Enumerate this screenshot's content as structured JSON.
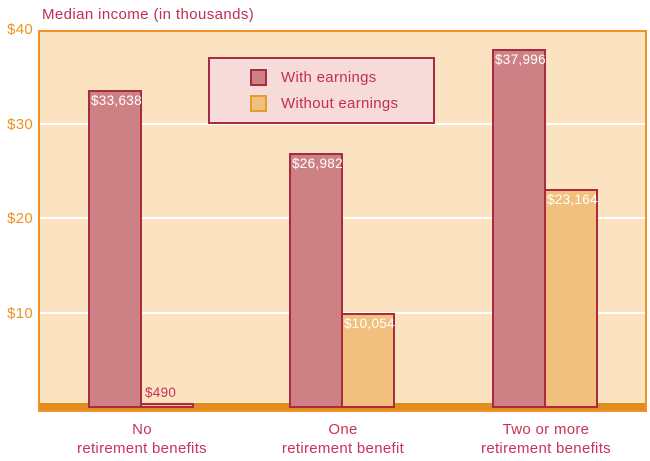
{
  "chart_data": {
    "type": "bar",
    "title": "Median income (in thousands)",
    "categories": [
      "No\nretirement benefits",
      "One\nretirement benefit",
      "Two or more\nretirement benefits"
    ],
    "series": [
      {
        "name": "With earnings",
        "values": [
          33638,
          26982,
          37996
        ],
        "value_labels": [
          "$33,638",
          "$26,982",
          "$37,996"
        ],
        "fill": "#ce8184",
        "border": "#a92b40"
      },
      {
        "name": "Without earnings",
        "values": [
          490,
          10054,
          23164
        ],
        "value_labels": [
          "$490",
          "$10,054",
          "$23,164"
        ],
        "fill": "#f2c07e",
        "border": "#a92b40",
        "legend_swatch_border": "#e89b2d"
      }
    ],
    "ylim": [
      0,
      40000
    ],
    "yticks": [
      {
        "value": 40000,
        "label": "$40"
      },
      {
        "value": 30000,
        "label": "$30"
      },
      {
        "value": 20000,
        "label": "$20"
      },
      {
        "value": 10000,
        "label": "$10"
      }
    ],
    "gridlines": [
      10000,
      20000,
      30000
    ],
    "grid_on": true,
    "legend_position": "inside-top-center",
    "xlabel": "",
    "ylabel": ""
  },
  "colors": {
    "page_bg": "#ffffff",
    "title_text": "#c22e52",
    "category_text": "#ca3357",
    "tick_text": "#ea9422",
    "plot_bg": "#fbe2c1",
    "plot_border": "#f09129",
    "axis_line": "#df8e1d",
    "gridline": "#ffffff",
    "legend_bg": "#f7dbdb",
    "legend_border": "#a92b40",
    "value_label_inside": "#ffffff",
    "value_label_above": "#ca3357"
  }
}
